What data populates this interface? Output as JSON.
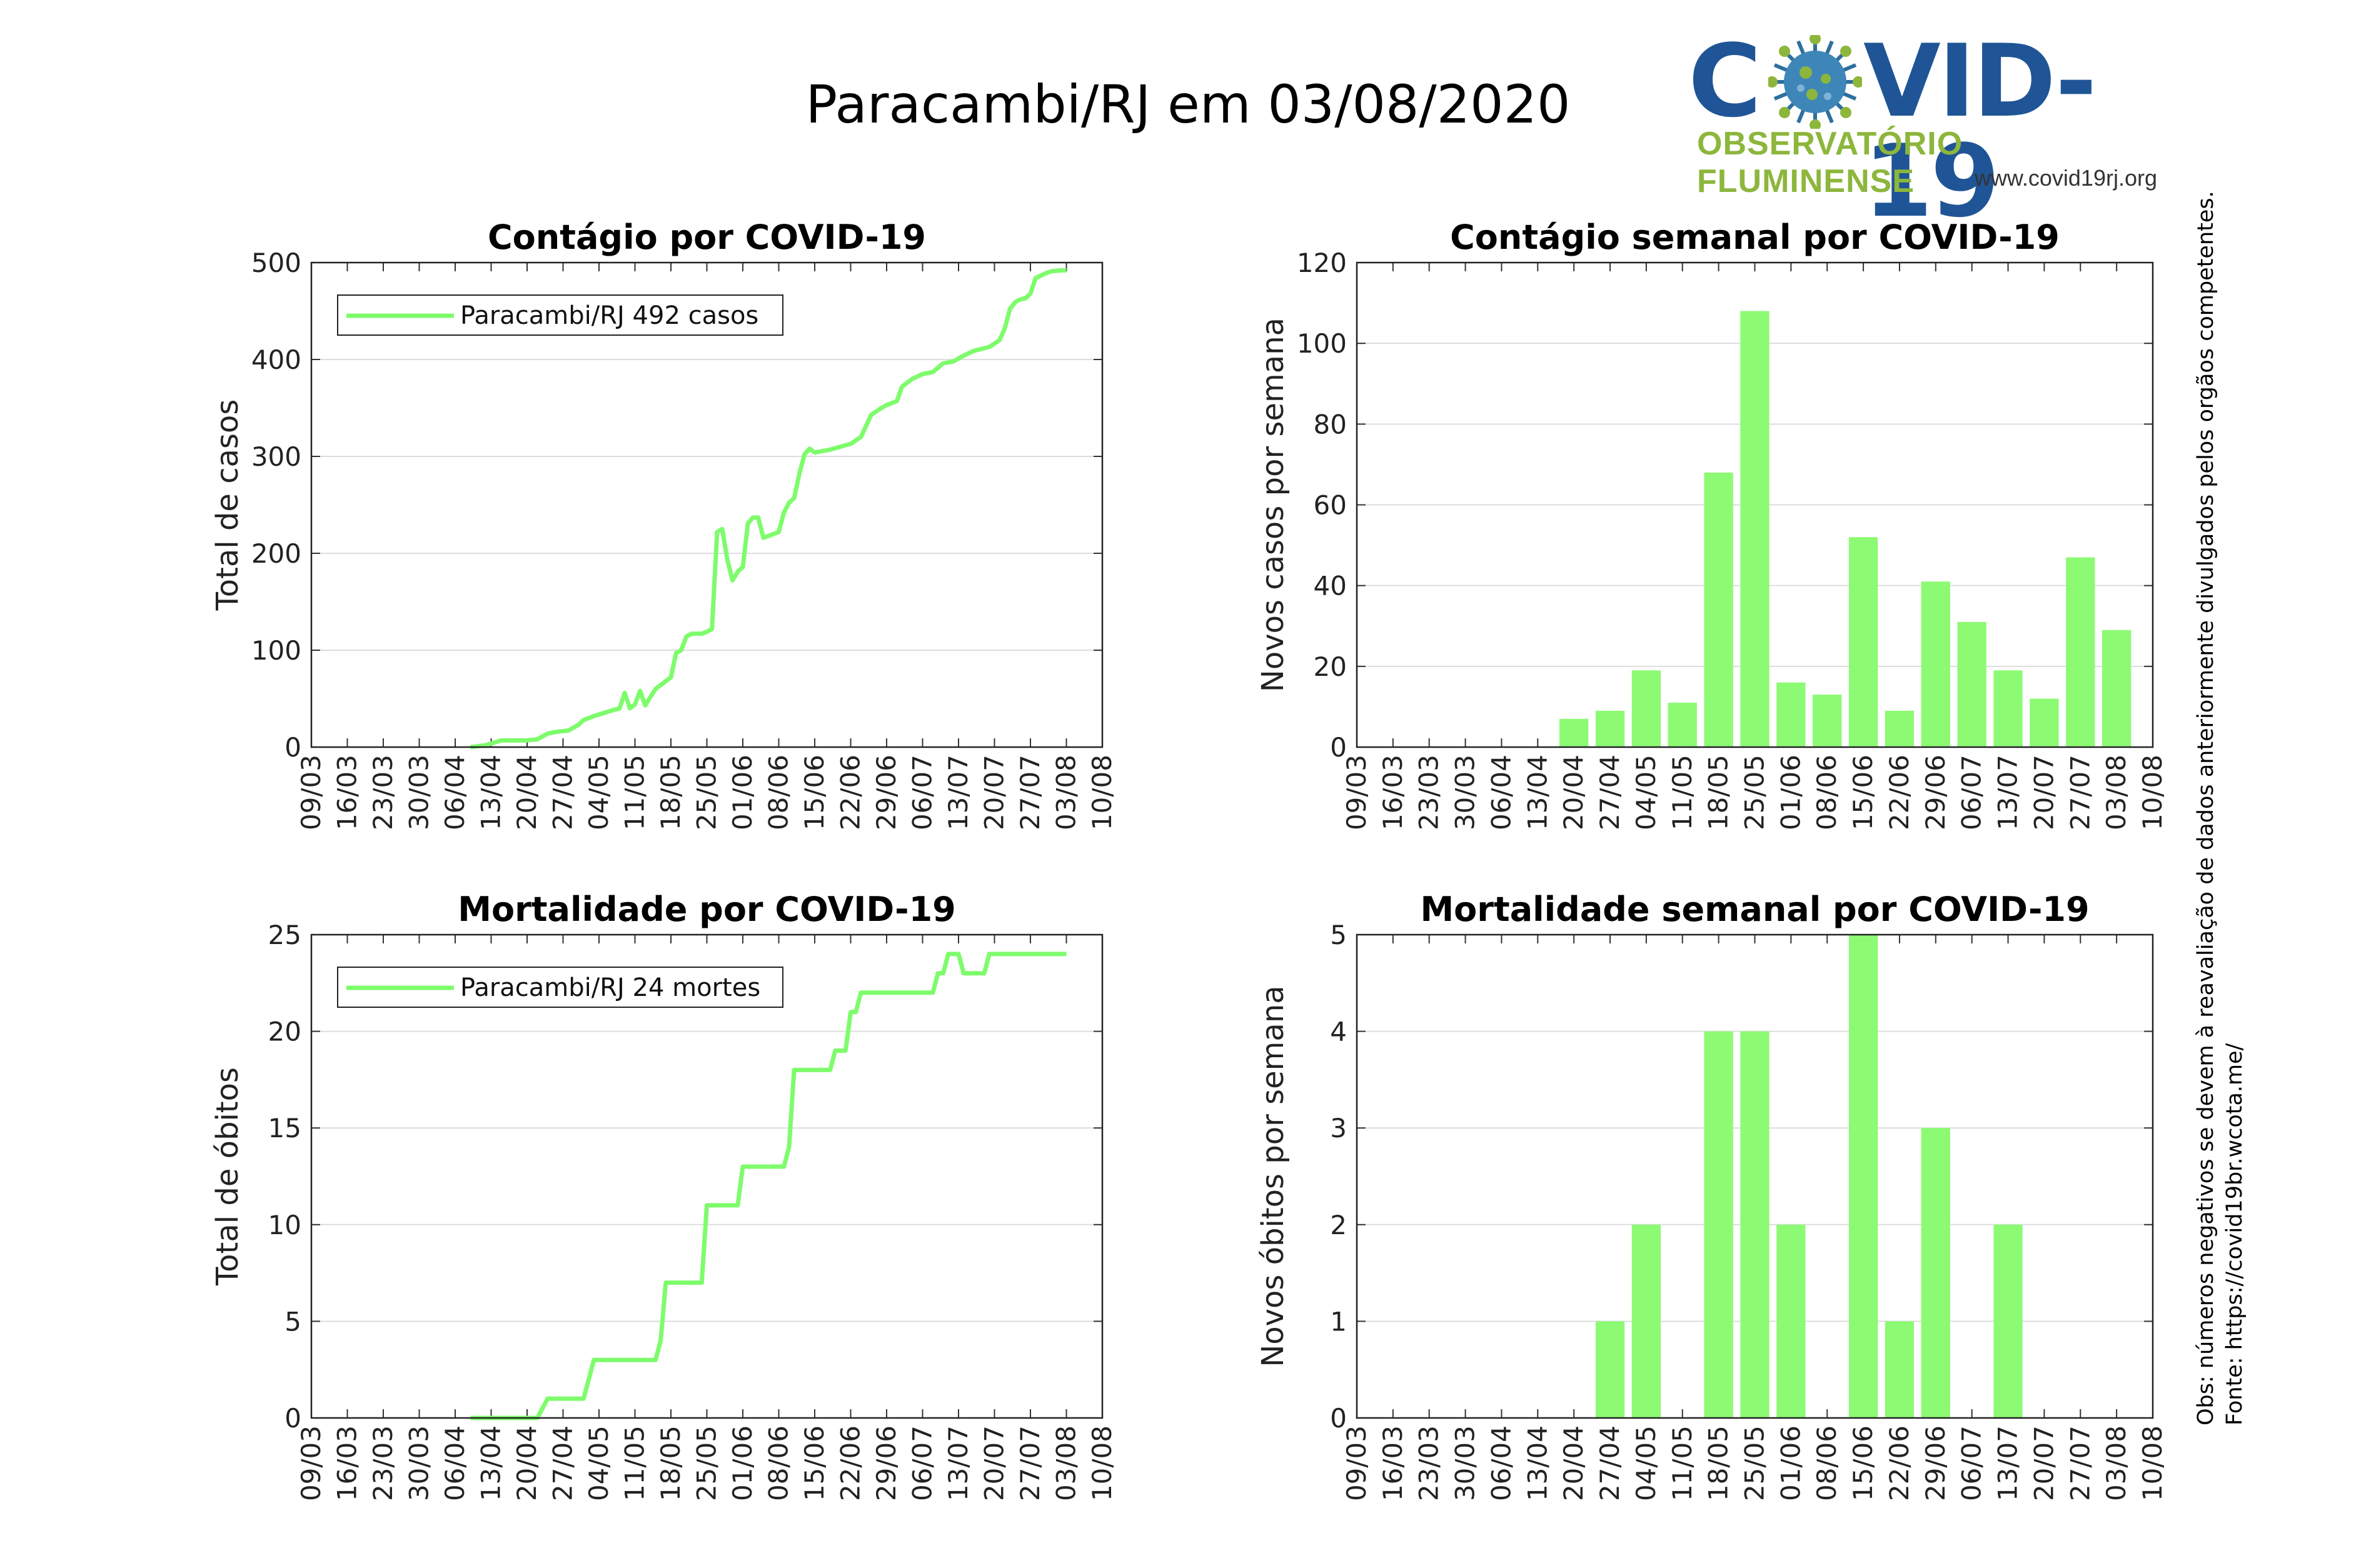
{
  "page": {
    "title": "Paracambi/RJ em 03/08/2020",
    "logo": {
      "word_left": "C",
      "word_right": "VID-19",
      "subtitle": "OBSERVATÓRIO FLUMINENSE",
      "url": "www.covid19rj.org",
      "icon": "virus-icon"
    },
    "side_note": {
      "source": "Fonte: https://covid19br.wcota.me/",
      "note": "Obs: números negativos se devem à reavaliação de dados anteriormente divulgados pelos orgãos competentes."
    },
    "colors": {
      "series": "#7efc6c",
      "bars": "#8dfa74",
      "grid": "#dddddd"
    }
  },
  "chart_data": [
    {
      "id": "cum-cases",
      "type": "line",
      "title": "Contágio por COVID-19",
      "ylabel": "Total de casos",
      "xlabel": "",
      "x_ticks": [
        "09/03",
        "16/03",
        "23/03",
        "30/03",
        "06/04",
        "13/04",
        "20/04",
        "27/04",
        "04/05",
        "11/05",
        "18/05",
        "25/05",
        "01/06",
        "08/06",
        "15/06",
        "22/06",
        "29/06",
        "06/07",
        "13/07",
        "20/07",
        "27/07",
        "03/08",
        "10/08"
      ],
      "ylim": [
        0,
        500
      ],
      "y_ticks": [
        0,
        100,
        200,
        300,
        400,
        500
      ],
      "grid": true,
      "legend": "top-left",
      "series": [
        {
          "name": "Paracambi/RJ  492 casos",
          "points": [
            [
              "09/04",
              0
            ],
            [
              "12/04",
              2
            ],
            [
              "15/04",
              7
            ],
            [
              "18/04",
              7
            ],
            [
              "20/04",
              7
            ],
            [
              "22/04",
              8
            ],
            [
              "24/04",
              14
            ],
            [
              "26/04",
              16
            ],
            [
              "28/04",
              17
            ],
            [
              "30/04",
              23
            ],
            [
              "01/05",
              28
            ],
            [
              "03/05",
              32
            ],
            [
              "06/05",
              37
            ],
            [
              "08/05",
              40
            ],
            [
              "09/05",
              56
            ],
            [
              "10/05",
              40
            ],
            [
              "11/05",
              44
            ],
            [
              "12/05",
              58
            ],
            [
              "13/05",
              43
            ],
            [
              "15/05",
              60
            ],
            [
              "17/05",
              68
            ],
            [
              "18/05",
              72
            ],
            [
              "19/05",
              97
            ],
            [
              "20/05",
              100
            ],
            [
              "21/05",
              114
            ],
            [
              "22/05",
              117
            ],
            [
              "24/05",
              117
            ],
            [
              "25/05",
              119
            ],
            [
              "26/05",
              122
            ],
            [
              "27/05",
              222
            ],
            [
              "28/05",
              225
            ],
            [
              "29/05",
              193
            ],
            [
              "30/05",
              172
            ],
            [
              "31/05",
              181
            ],
            [
              "01/06",
              186
            ],
            [
              "02/06",
              231
            ],
            [
              "03/06",
              237
            ],
            [
              "04/06",
              237
            ],
            [
              "05/06",
              216
            ],
            [
              "06/06",
              218
            ],
            [
              "08/06",
              222
            ],
            [
              "09/06",
              242
            ],
            [
              "10/06",
              252
            ],
            [
              "11/06",
              257
            ],
            [
              "12/06",
              282
            ],
            [
              "13/06",
              302
            ],
            [
              "14/06",
              308
            ],
            [
              "15/06",
              304
            ],
            [
              "16/06",
              305
            ],
            [
              "18/06",
              307
            ],
            [
              "20/06",
              310
            ],
            [
              "22/06",
              313
            ],
            [
              "24/06",
              320
            ],
            [
              "26/06",
              343
            ],
            [
              "28/06",
              350
            ],
            [
              "29/06",
              353
            ],
            [
              "01/07",
              357
            ],
            [
              "02/07",
              372
            ],
            [
              "04/07",
              380
            ],
            [
              "06/07",
              385
            ],
            [
              "08/07",
              387
            ],
            [
              "10/07",
              396
            ],
            [
              "12/07",
              398
            ],
            [
              "14/07",
              404
            ],
            [
              "16/07",
              409
            ],
            [
              "19/07",
              413
            ],
            [
              "21/07",
              420
            ],
            [
              "22/07",
              432
            ],
            [
              "23/07",
              452
            ],
            [
              "24/07",
              459
            ],
            [
              "25/07",
              462
            ],
            [
              "26/07",
              463
            ],
            [
              "27/07",
              468
            ],
            [
              "28/07",
              484
            ],
            [
              "30/07",
              489
            ],
            [
              "31/07",
              491
            ],
            [
              "02/08",
              492
            ],
            [
              "03/08",
              492
            ]
          ]
        }
      ]
    },
    {
      "id": "weekly-cases",
      "type": "bar",
      "title": "Contágio semanal por COVID-19",
      "ylabel": "Novos casos por semana",
      "xlabel": "",
      "x_ticks": [
        "09/03",
        "16/03",
        "23/03",
        "30/03",
        "06/04",
        "13/04",
        "20/04",
        "27/04",
        "04/05",
        "11/05",
        "18/05",
        "25/05",
        "01/06",
        "08/06",
        "15/06",
        "22/06",
        "29/06",
        "06/07",
        "13/07",
        "20/07",
        "27/07",
        "03/08",
        "10/08"
      ],
      "ylim": [
        0,
        120
      ],
      "y_ticks": [
        0,
        20,
        40,
        60,
        80,
        100,
        120
      ],
      "grid": true,
      "categories": [
        "20/04",
        "27/04",
        "04/05",
        "11/05",
        "18/05",
        "25/05",
        "01/06",
        "08/06",
        "15/06",
        "22/06",
        "29/06",
        "06/07",
        "13/07",
        "20/07",
        "27/07",
        "03/08"
      ],
      "values": [
        7,
        9,
        19,
        11,
        68,
        108,
        16,
        13,
        52,
        9,
        41,
        31,
        19,
        12,
        47,
        29
      ]
    },
    {
      "id": "cum-deaths",
      "type": "line",
      "title": "Mortalidade por COVID-19",
      "ylabel": "Total de óbitos",
      "xlabel": "",
      "x_ticks": [
        "09/03",
        "16/03",
        "23/03",
        "30/03",
        "06/04",
        "13/04",
        "20/04",
        "27/04",
        "04/05",
        "11/05",
        "18/05",
        "25/05",
        "01/06",
        "08/06",
        "15/06",
        "22/06",
        "29/06",
        "06/07",
        "13/07",
        "20/07",
        "27/07",
        "03/08",
        "10/08"
      ],
      "ylim": [
        0,
        25
      ],
      "y_ticks": [
        0,
        5,
        10,
        15,
        20,
        25
      ],
      "grid": true,
      "legend": "top-left",
      "series": [
        {
          "name": "Paracambi/RJ  24 mortes",
          "points": [
            [
              "09/04",
              0
            ],
            [
              "22/04",
              0
            ],
            [
              "24/04",
              1
            ],
            [
              "01/05",
              1
            ],
            [
              "03/05",
              3
            ],
            [
              "15/05",
              3
            ],
            [
              "16/05",
              4
            ],
            [
              "17/05",
              7
            ],
            [
              "24/05",
              7
            ],
            [
              "25/05",
              11
            ],
            [
              "31/05",
              11
            ],
            [
              "01/06",
              13
            ],
            [
              "09/06",
              13
            ],
            [
              "10/06",
              14
            ],
            [
              "11/06",
              18
            ],
            [
              "18/06",
              18
            ],
            [
              "19/06",
              19
            ],
            [
              "21/06",
              19
            ],
            [
              "22/06",
              21
            ],
            [
              "23/06",
              21
            ],
            [
              "24/06",
              22
            ],
            [
              "08/07",
              22
            ],
            [
              "09/07",
              23
            ],
            [
              "10/07",
              23
            ],
            [
              "11/07",
              24
            ],
            [
              "13/07",
              24
            ],
            [
              "14/07",
              23
            ],
            [
              "18/07",
              23
            ],
            [
              "19/07",
              24
            ],
            [
              "03/08",
              24
            ]
          ]
        }
      ]
    },
    {
      "id": "weekly-deaths",
      "type": "bar",
      "title": "Mortalidade semanal por COVID-19",
      "ylabel": "Novos óbitos por semana",
      "xlabel": "",
      "x_ticks": [
        "09/03",
        "16/03",
        "23/03",
        "30/03",
        "06/04",
        "13/04",
        "20/04",
        "27/04",
        "04/05",
        "11/05",
        "18/05",
        "25/05",
        "01/06",
        "08/06",
        "15/06",
        "22/06",
        "29/06",
        "06/07",
        "13/07",
        "20/07",
        "27/07",
        "03/08",
        "10/08"
      ],
      "ylim": [
        0,
        5
      ],
      "y_ticks": [
        0,
        1,
        2,
        3,
        4,
        5
      ],
      "grid": true,
      "categories": [
        "27/04",
        "04/05",
        "18/05",
        "25/05",
        "01/06",
        "15/06",
        "22/06",
        "29/06",
        "13/07"
      ],
      "values": [
        1,
        2,
        4,
        4,
        2,
        5,
        1,
        3,
        2
      ]
    }
  ]
}
